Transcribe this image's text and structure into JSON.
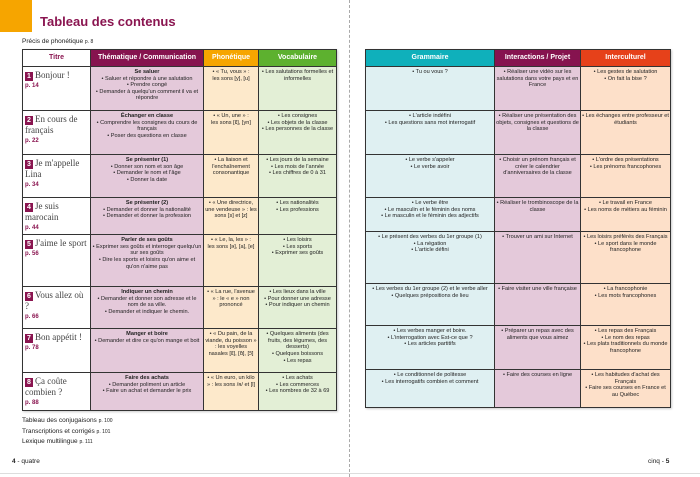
{
  "title": "Tableau des contenus",
  "precis": {
    "label": "Précis de phonétique",
    "page": "p. 8"
  },
  "left_headers": [
    "Titre",
    "Thématique / Communication",
    "Phonétique",
    "Vocabulaire"
  ],
  "right_headers": [
    "Grammaire",
    "Interactions / Projet",
    "Interculturel"
  ],
  "colors": {
    "brand": "#8a1550",
    "phonetique": "#f6a500",
    "vocabulaire": "#5db12f",
    "grammaire": "#0fb0bb",
    "interculturel": "#e6411a"
  },
  "units": [
    {
      "num": "1",
      "title": "Bonjour !",
      "page": "p. 14",
      "them_head": "Se saluer",
      "them": [
        "• Saluer et répondre à une salutation",
        "• Prendre congé",
        "• Demander à quelqu'un comment il va et répondre"
      ],
      "phon": [
        "• « Tu, vous » :",
        "les sons [y], [u]"
      ],
      "voc": [
        "• Les salutations formelles et informelles"
      ],
      "gram": [
        "• Tu ou vous ?"
      ],
      "inter": [
        "• Réaliser une vidéo sur les salutations dans votre pays et en France"
      ],
      "cult": [
        "• Les gestes de salutation",
        "• On fait la bise ?"
      ]
    },
    {
      "num": "2",
      "title": "En cours de français",
      "page": "p. 22",
      "them_head": "Échanger en classe",
      "them": [
        "• Comprendre les consignes du cours de français",
        "• Poser des questions en classe"
      ],
      "phon": [
        "• « Un, une » :",
        "les sons [ɛ̃], [yn]"
      ],
      "voc": [
        "• Les consignes",
        "• Les objets de la classe",
        "• Les personnes de la classe"
      ],
      "gram": [
        "• L'article indéfini",
        "• Les questions sans mot interrogatif"
      ],
      "inter": [
        "• Réaliser une présentation des objets, consignes et questions de la classe"
      ],
      "cult": [
        "• Les échanges entre professeur et étudiants"
      ]
    },
    {
      "num": "3",
      "title": "Je m'appelle Lina",
      "page": "p. 34",
      "them_head": "Se présenter (1)",
      "them": [
        "• Donner son nom et son âge",
        "• Demander le nom et l'âge",
        "• Donner la date"
      ],
      "phon": [
        "• La liaison et l'enchaînement consonantique"
      ],
      "voc": [
        "• Les jours de la semaine",
        "• Les mois de l'année",
        "• Les chiffres de 0 à 31"
      ],
      "gram": [
        "• Le verbe s'appeler",
        "• Le verbe avoir"
      ],
      "inter": [
        "• Choisir un prénom français et créer le calendrier d'anniversaires de la classe"
      ],
      "cult": [
        "• L'ordre des présentations",
        "• Les prénoms francophones"
      ]
    },
    {
      "num": "4",
      "title": "Je suis marocain",
      "page": "p. 44",
      "them_head": "Se présenter (2)",
      "them": [
        "• Demander et donner la nationalité",
        "• Demander et donner la profession"
      ],
      "phon": [
        "• « Une directrice, une vendeuse » : les sons [s] et [z]"
      ],
      "voc": [
        "• Les nationalités",
        "• Les professions"
      ],
      "gram": [
        "• Le verbe être",
        "• Le masculin et le féminin des noms",
        "• Le masculin et le féminin des adjectifs"
      ],
      "inter": [
        "• Réaliser le trombinoscope de la classe"
      ],
      "cult": [
        "• Le travail en France",
        "• Les noms de métiers au féminin"
      ]
    },
    {
      "num": "5",
      "title": "J'aime le sport",
      "page": "p. 56",
      "them_head": "Parler de ses goûts",
      "them": [
        "• Exprimer ses goûts et interroger quelqu'un sur ses goûts",
        "• Dire les sports et loisirs qu'on aime et qu'on n'aime pas"
      ],
      "phon": [
        "• « Le, la, les » :",
        "les sons [ə], [a], [e]"
      ],
      "voc": [
        "• Les loisirs",
        "• Les sports",
        "• Exprimer ses goûts"
      ],
      "gram": [
        "• Le présent des verbes du 1er groupe (1)",
        "• La négation",
        "• L'article défini"
      ],
      "inter": [
        "• Trouver un ami sur Internet"
      ],
      "cult": [
        "• Les loisirs préférés des Français",
        "• Le sport dans le monde francophone"
      ]
    },
    {
      "num": "6",
      "title": "Vous allez où ?",
      "page": "p. 66",
      "them_head": "Indiquer un chemin",
      "them": [
        "• Demander et donner son adresse et le nom de sa ville.",
        "• Demander et indiquer le chemin."
      ],
      "phon": [
        "• « La rue, l'avenue » : le « e » non prononcé"
      ],
      "voc": [
        "• Les lieux dans la ville",
        "• Pour donner une adresse",
        "• Pour indiquer un chemin"
      ],
      "gram": [
        "• Les verbes du 1er groupe (2) et le verbe aller",
        "• Quelques prépositions de lieu"
      ],
      "inter": [
        "• Faire visiter une ville française"
      ],
      "cult": [
        "• La francophonie",
        "• Les mots francophones"
      ]
    },
    {
      "num": "7",
      "title": "Bon appétit !",
      "page": "p. 78",
      "them_head": "Manger et boire",
      "them": [
        "• Demander et dire ce qu'on mange et boit"
      ],
      "phon": [
        "• « Du pain, de la viande, du poisson » : les voyelles nasales [ɛ̃], [ɑ̃], [ɔ̃]"
      ],
      "voc": [
        "• Quelques aliments (des fruits, des légumes, des desserts)",
        "• Quelques boissons",
        "• Les repas"
      ],
      "gram": [
        "• Les verbes manger et boire.",
        "• L'interrogation avec Est-ce que ?",
        "• Les articles partitifs"
      ],
      "inter": [
        "• Préparer un repas avec des aliments que vous aimez"
      ],
      "cult": [
        "• Les repas des Français",
        "• Le nom des repas",
        "• Les plats traditionnels du monde francophone"
      ]
    },
    {
      "num": "8",
      "title": "Ça coûte combien ?",
      "page": "p. 88",
      "them_head": "Faire des achats",
      "them": [
        "• Demander poliment un article",
        "• Faire un achat et demander le prix"
      ],
      "phon": [
        "• « Un euro, un kilo » : les sons /ʀ/ et [l]"
      ],
      "voc": [
        "• Les achats",
        "• Les commerces",
        "• Les nombres de 32 à 69"
      ],
      "gram": [
        "• Le conditionnel de politesse",
        "• Les interrogatifs combien et comment"
      ],
      "inter": [
        "• Faire des courses en ligne"
      ],
      "cult": [
        "• Les habitudes d'achat des Français",
        "• Faire ses courses en France et au Québec"
      ]
    }
  ],
  "footer_links": [
    {
      "label": "Tableau des conjugaisons",
      "page": "p. 100"
    },
    {
      "label": "Transcriptions et corrigés",
      "page": "p. 101"
    },
    {
      "label": "Lexique multilingue",
      "page": "p. 111"
    }
  ],
  "page_left": {
    "num": "4",
    "word": "quatre"
  },
  "page_right": {
    "num": "5",
    "word": "cinq"
  }
}
